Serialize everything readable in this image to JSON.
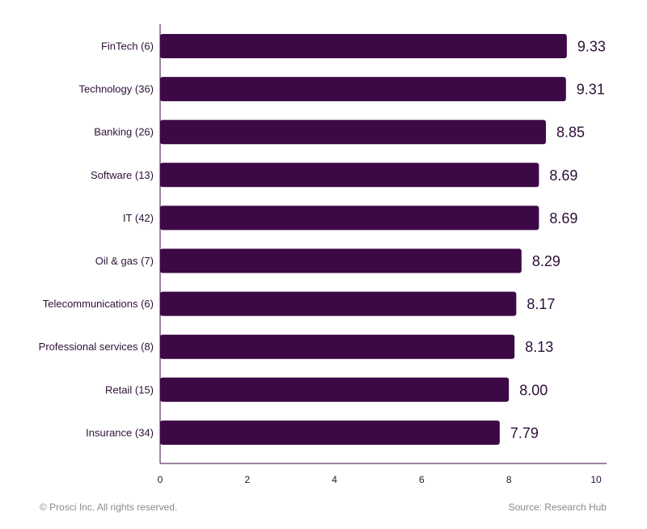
{
  "chart_data": {
    "type": "bar",
    "orientation": "horizontal",
    "categories": [
      "FinTech (6)",
      "Technology (36)",
      "Banking (26)",
      "Software (13)",
      "IT (42)",
      "Oil & gas (7)",
      "Telecommunications (6)",
      "Professional services (8)",
      "Retail (15)",
      "Insurance (34)"
    ],
    "values": [
      9.33,
      9.31,
      8.85,
      8.69,
      8.69,
      8.29,
      8.17,
      8.13,
      8.0,
      7.79
    ],
    "data_labels": [
      "9.33",
      "9.31",
      "8.85",
      "8.69",
      "8.69",
      "8.29",
      "8.17",
      "8.13",
      "8.00",
      "7.79"
    ],
    "xlim": [
      0,
      10
    ],
    "xticks": [
      "0",
      "2",
      "4",
      "6",
      "8",
      "10"
    ],
    "grid": false,
    "colors": {
      "bar": "#3d0846",
      "text": "#2d1038",
      "axis": "#3d0846"
    }
  },
  "footer": {
    "copyright": "© Prosci Inc. All rights reserved.",
    "source": "Source: Research Hub"
  }
}
